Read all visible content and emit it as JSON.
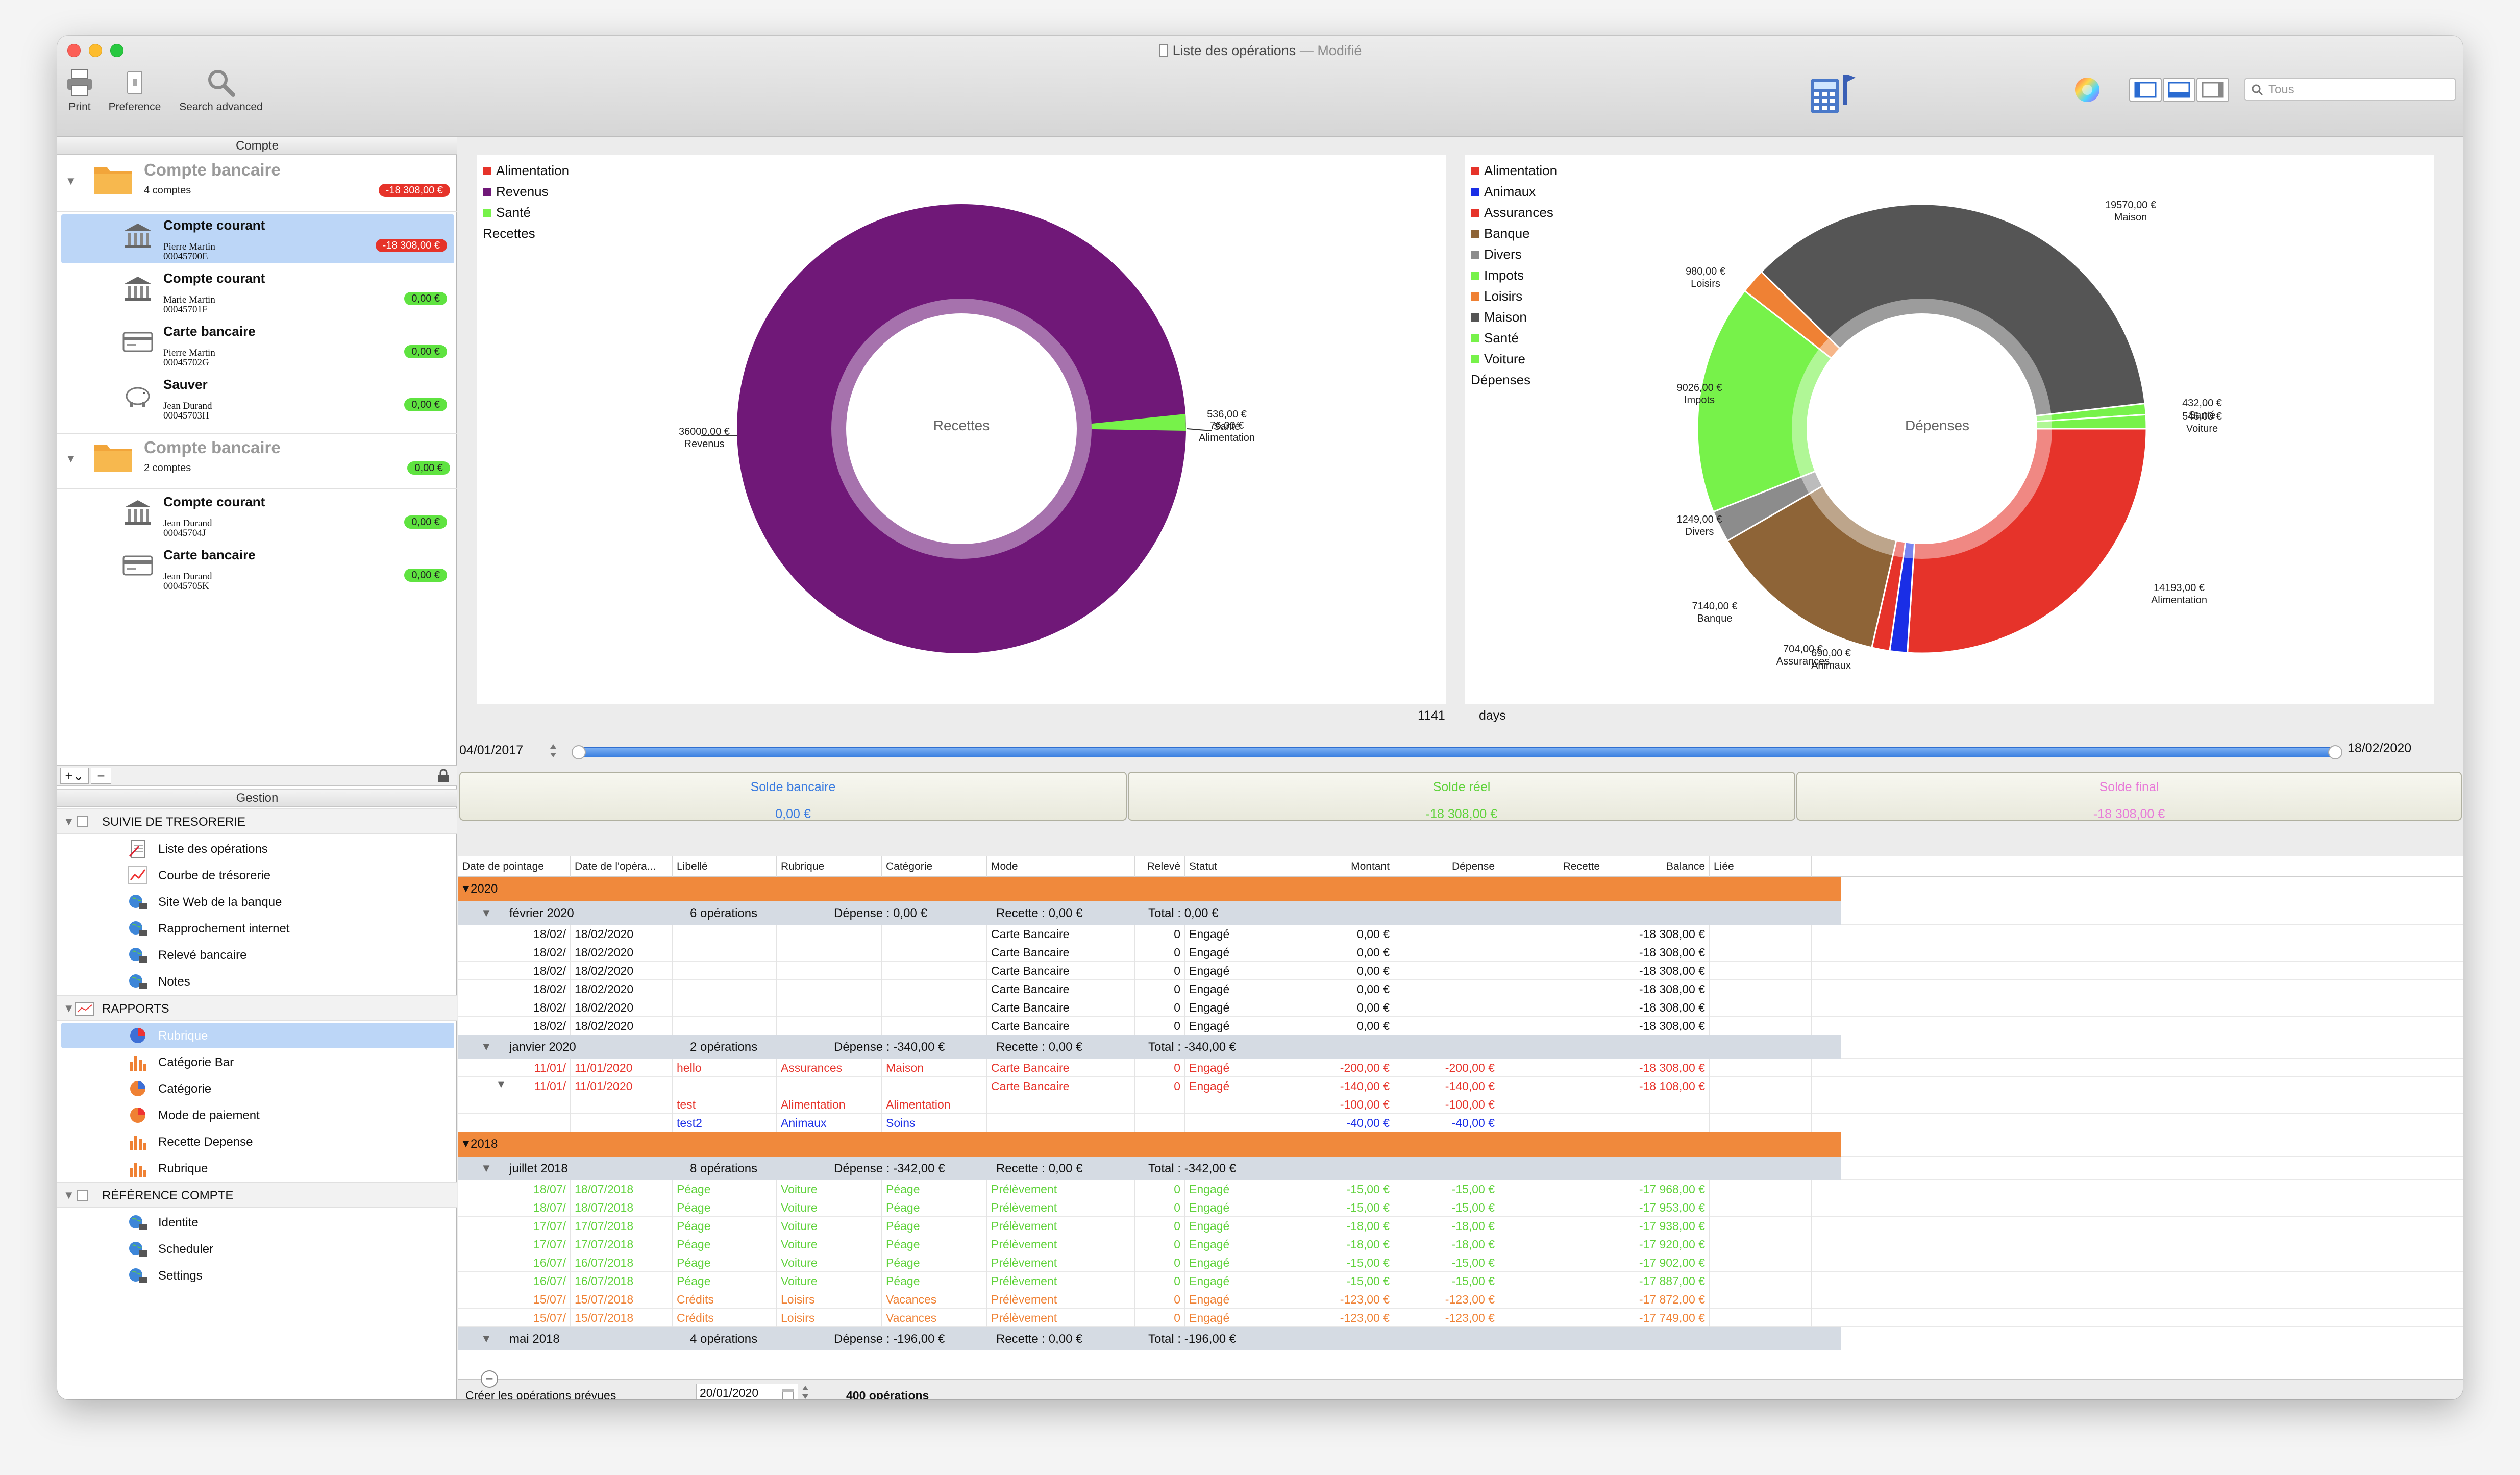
{
  "window": {
    "title": "Liste des opérations",
    "modified": "— Modifié"
  },
  "toolbar": {
    "print": "Print",
    "preference": "Preference",
    "search_advanced": "Search advanced",
    "search_placeholder": "Tous"
  },
  "left_panel": {
    "header": "Compte",
    "groups": [
      {
        "name": "Compte bancaire",
        "count": "4 comptes",
        "balance": "-18 308,00 €",
        "accounts": [
          {
            "name": "Compte courant",
            "owner": "Pierre Martin",
            "number": "00045700E",
            "balance": "-18 308,00 €",
            "icon": "bank-icon"
          },
          {
            "name": "Compte courant",
            "owner": "Marie Martin",
            "number": "00045701F",
            "balance": "0,00 €",
            "icon": "bank-icon"
          },
          {
            "name": "Carte bancaire",
            "owner": "Pierre Martin",
            "number": "00045702G",
            "balance": "0,00 €",
            "icon": "card-icon"
          },
          {
            "name": "Sauver",
            "owner": "Jean Durand",
            "number": "00045703H",
            "balance": "0,00 €",
            "icon": "piggy-icon"
          }
        ]
      },
      {
        "name": "Compte bancaire",
        "count": "2 comptes",
        "balance": "0,00 €",
        "accounts": [
          {
            "name": "Compte courant",
            "owner": "Jean Durand",
            "number": "00045704J",
            "balance": "0,00 €",
            "icon": "bank-icon"
          },
          {
            "name": "Carte bancaire",
            "owner": "Jean Durand",
            "number": "00045705K",
            "balance": "0,00 €",
            "icon": "card-icon"
          }
        ]
      }
    ],
    "add": "+",
    "minus": "−",
    "gestion_header": "Gestion",
    "sections": [
      {
        "title": "SUIVIE DE TRESORERIE",
        "items": [
          "Liste des opérations",
          "Courbe de trésorerie",
          "Site Web de la banque",
          "Rapprochement internet",
          "Relevé bancaire",
          "Notes"
        ]
      },
      {
        "title": "RAPPORTS",
        "items": [
          "Rubrique",
          "Catégorie Bar",
          "Catégorie",
          "Mode de paiement",
          "Recette Depense",
          "Rubrique"
        ]
      },
      {
        "title": "RÉFÉRENCE COMPTE",
        "items": [
          "Identite",
          "Scheduler",
          "Settings"
        ]
      }
    ]
  },
  "charts": {
    "recettes": {
      "title": "Recettes",
      "legend": [
        {
          "name": "Alimentation",
          "color": "#e6332a"
        },
        {
          "name": "Revenus",
          "color": "#701878"
        },
        {
          "name": "Santé",
          "color": "#77f24a"
        }
      ],
      "labels": [
        {
          "value": "36000,00 €",
          "name": "Revenus"
        },
        {
          "value": "536,00 €",
          "name": "Santé"
        },
        {
          "value": "76,00 €",
          "name": "Alimentation"
        }
      ]
    },
    "depenses": {
      "title": "Dépenses",
      "legend": [
        {
          "name": "Alimentation",
          "color": "#e6332a"
        },
        {
          "name": "Animaux",
          "color": "#1a2ee6"
        },
        {
          "name": "Assurances",
          "color": "#e6332a"
        },
        {
          "name": "Banque",
          "color": "#8e6437"
        },
        {
          "name": "Divers",
          "color": "#8c8c8c"
        },
        {
          "name": "Impots",
          "color": "#77f24a"
        },
        {
          "name": "Loisirs",
          "color": "#ef8134"
        },
        {
          "name": "Maison",
          "color": "#555555"
        },
        {
          "name": "Santé",
          "color": "#77f24a"
        },
        {
          "name": "Voiture",
          "color": "#77f24a"
        }
      ],
      "labels": [
        {
          "value": "19570,00 €",
          "name": "Maison"
        },
        {
          "value": "980,00 €",
          "name": "Loisirs"
        },
        {
          "value": "9026,00 €",
          "name": "Impots"
        },
        {
          "value": "1249,00 €",
          "name": "Divers"
        },
        {
          "value": "7140,00 €",
          "name": "Banque"
        },
        {
          "value": "704,00 €",
          "name": "Assurances"
        },
        {
          "value": "690,00 €",
          "name": "Animaux"
        },
        {
          "value": "14193,00 €",
          "name": "Alimentation"
        },
        {
          "value": "432,00 €",
          "name": "Santé"
        },
        {
          "value": "546,00 €",
          "name": "Voiture"
        }
      ]
    }
  },
  "period": {
    "days_value": "1141",
    "days_label": "days",
    "start": "04/01/2017",
    "end": "18/02/2020"
  },
  "soldes": [
    {
      "label": "Solde bancaire",
      "value": "0,00 €",
      "color": "#3a7be0"
    },
    {
      "label": "Solde réel",
      "value": "-18 308,00 €",
      "color": "#5fd23a"
    },
    {
      "label": "Solde final",
      "value": "-18 308,00 €",
      "color": "#e87ad8"
    }
  ],
  "table": {
    "headers": [
      "Date de pointage",
      "Date de l'opéra...",
      "Libellé",
      "Rubrique",
      "Catégorie",
      "Mode",
      "Relevé",
      "Statut",
      "Montant",
      "Dépense",
      "Recette",
      "Balance",
      "Liée"
    ],
    "rows": [
      {
        "type": "year",
        "label": "2020"
      },
      {
        "type": "month",
        "label": "février 2020",
        "ops": "6 opérations",
        "dep": "Dépense : 0,00 €",
        "rec": "Recette : 0,00 €",
        "tot": "Total : 0,00 €"
      },
      {
        "type": "op",
        "color": "#111",
        "cells": [
          "18/02/",
          "18/02/2020",
          "",
          "",
          "",
          "Carte Bancaire",
          "0",
          "Engagé",
          "0,00 €",
          "",
          "",
          "-18 308,00 €",
          ""
        ]
      },
      {
        "type": "op",
        "color": "#111",
        "cells": [
          "18/02/",
          "18/02/2020",
          "",
          "",
          "",
          "Carte Bancaire",
          "0",
          "Engagé",
          "0,00 €",
          "",
          "",
          "-18 308,00 €",
          ""
        ]
      },
      {
        "type": "op",
        "color": "#111",
        "cells": [
          "18/02/",
          "18/02/2020",
          "",
          "",
          "",
          "Carte Bancaire",
          "0",
          "Engagé",
          "0,00 €",
          "",
          "",
          "-18 308,00 €",
          ""
        ]
      },
      {
        "type": "op",
        "color": "#111",
        "cells": [
          "18/02/",
          "18/02/2020",
          "",
          "",
          "",
          "Carte Bancaire",
          "0",
          "Engagé",
          "0,00 €",
          "",
          "",
          "-18 308,00 €",
          ""
        ]
      },
      {
        "type": "op",
        "color": "#111",
        "cells": [
          "18/02/",
          "18/02/2020",
          "",
          "",
          "",
          "Carte Bancaire",
          "0",
          "Engagé",
          "0,00 €",
          "",
          "",
          "-18 308,00 €",
          ""
        ]
      },
      {
        "type": "op",
        "color": "#111",
        "cells": [
          "18/02/",
          "18/02/2020",
          "",
          "",
          "",
          "Carte Bancaire",
          "0",
          "Engagé",
          "0,00 €",
          "",
          "",
          "-18 308,00 €",
          ""
        ]
      },
      {
        "type": "month",
        "label": "janvier 2020",
        "ops": "2 opérations",
        "dep": "Dépense : -340,00 €",
        "rec": "Recette : 0,00 €",
        "tot": "Total : -340,00 €"
      },
      {
        "type": "op",
        "color": "#e6332a",
        "cells": [
          "11/01/",
          "11/01/2020",
          "hello",
          "Assurances",
          "Maison",
          "Carte Bancaire",
          "0",
          "Engagé",
          "-200,00 €",
          "-200,00 €",
          "",
          "-18 308,00 €",
          ""
        ]
      },
      {
        "type": "op",
        "color": "#e6332a",
        "expand": true,
        "cells": [
          "11/01/",
          "11/01/2020",
          "",
          "",
          "",
          "Carte Bancaire",
          "0",
          "Engagé",
          "-140,00 €",
          "-140,00 €",
          "",
          "-18 108,00 €",
          ""
        ]
      },
      {
        "type": "op",
        "color": "#e6332a",
        "cells": [
          "",
          "",
          "test",
          "Alimentation",
          "Alimentation",
          "",
          "",
          "",
          "-100,00 €",
          "-100,00 €",
          "",
          "",
          ""
        ]
      },
      {
        "type": "op",
        "color": "#1a2ee6",
        "cells": [
          "",
          "",
          "test2",
          "Animaux",
          "Soins",
          "",
          "",
          "",
          "-40,00 €",
          "-40,00 €",
          "",
          "",
          ""
        ]
      },
      {
        "type": "year",
        "label": "2018"
      },
      {
        "type": "month",
        "label": "juillet 2018",
        "ops": "8 opérations",
        "dep": "Dépense : -342,00 €",
        "rec": "Recette : 0,00 €",
        "tot": "Total : -342,00 €"
      },
      {
        "type": "op",
        "color": "#5fd23a",
        "cells": [
          "18/07/",
          "18/07/2018",
          "Péage",
          "Voiture",
          "Péage",
          "Prélèvement",
          "0",
          "Engagé",
          "-15,00 €",
          "-15,00 €",
          "",
          "-17 968,00 €",
          ""
        ]
      },
      {
        "type": "op",
        "color": "#5fd23a",
        "cells": [
          "18/07/",
          "18/07/2018",
          "Péage",
          "Voiture",
          "Péage",
          "Prélèvement",
          "0",
          "Engagé",
          "-15,00 €",
          "-15,00 €",
          "",
          "-17 953,00 €",
          ""
        ]
      },
      {
        "type": "op",
        "color": "#5fd23a",
        "cells": [
          "17/07/",
          "17/07/2018",
          "Péage",
          "Voiture",
          "Péage",
          "Prélèvement",
          "0",
          "Engagé",
          "-18,00 €",
          "-18,00 €",
          "",
          "-17 938,00 €",
          ""
        ]
      },
      {
        "type": "op",
        "color": "#5fd23a",
        "cells": [
          "17/07/",
          "17/07/2018",
          "Péage",
          "Voiture",
          "Péage",
          "Prélèvement",
          "0",
          "Engagé",
          "-18,00 €",
          "-18,00 €",
          "",
          "-17 920,00 €",
          ""
        ]
      },
      {
        "type": "op",
        "color": "#5fd23a",
        "cells": [
          "16/07/",
          "16/07/2018",
          "Péage",
          "Voiture",
          "Péage",
          "Prélèvement",
          "0",
          "Engagé",
          "-15,00 €",
          "-15,00 €",
          "",
          "-17 902,00 €",
          ""
        ]
      },
      {
        "type": "op",
        "color": "#5fd23a",
        "cells": [
          "16/07/",
          "16/07/2018",
          "Péage",
          "Voiture",
          "Péage",
          "Prélèvement",
          "0",
          "Engagé",
          "-15,00 €",
          "-15,00 €",
          "",
          "-17 887,00 €",
          ""
        ]
      },
      {
        "type": "op",
        "color": "#ef8134",
        "cells": [
          "15/07/",
          "15/07/2018",
          "Crédits",
          "Loisirs",
          "Vacances",
          "Prélèvement",
          "0",
          "Engagé",
          "-123,00 €",
          "-123,00 €",
          "",
          "-17 872,00 €",
          ""
        ]
      },
      {
        "type": "op",
        "color": "#ef8134",
        "cells": [
          "15/07/",
          "15/07/2018",
          "Crédits",
          "Loisirs",
          "Vacances",
          "Prélèvement",
          "0",
          "Engagé",
          "-123,00 €",
          "-123,00 €",
          "",
          "-17 749,00 €",
          ""
        ]
      },
      {
        "type": "month",
        "label": "mai 2018",
        "ops": "4 opérations",
        "dep": "Dépense : -196,00 €",
        "rec": "Recette : 0,00 €",
        "tot": "Total : -196,00 €"
      }
    ]
  },
  "footer": {
    "minus": "−",
    "create_label": "Créer les opérations prévues",
    "date": "20/01/2020",
    "count": "400 opérations"
  }
}
